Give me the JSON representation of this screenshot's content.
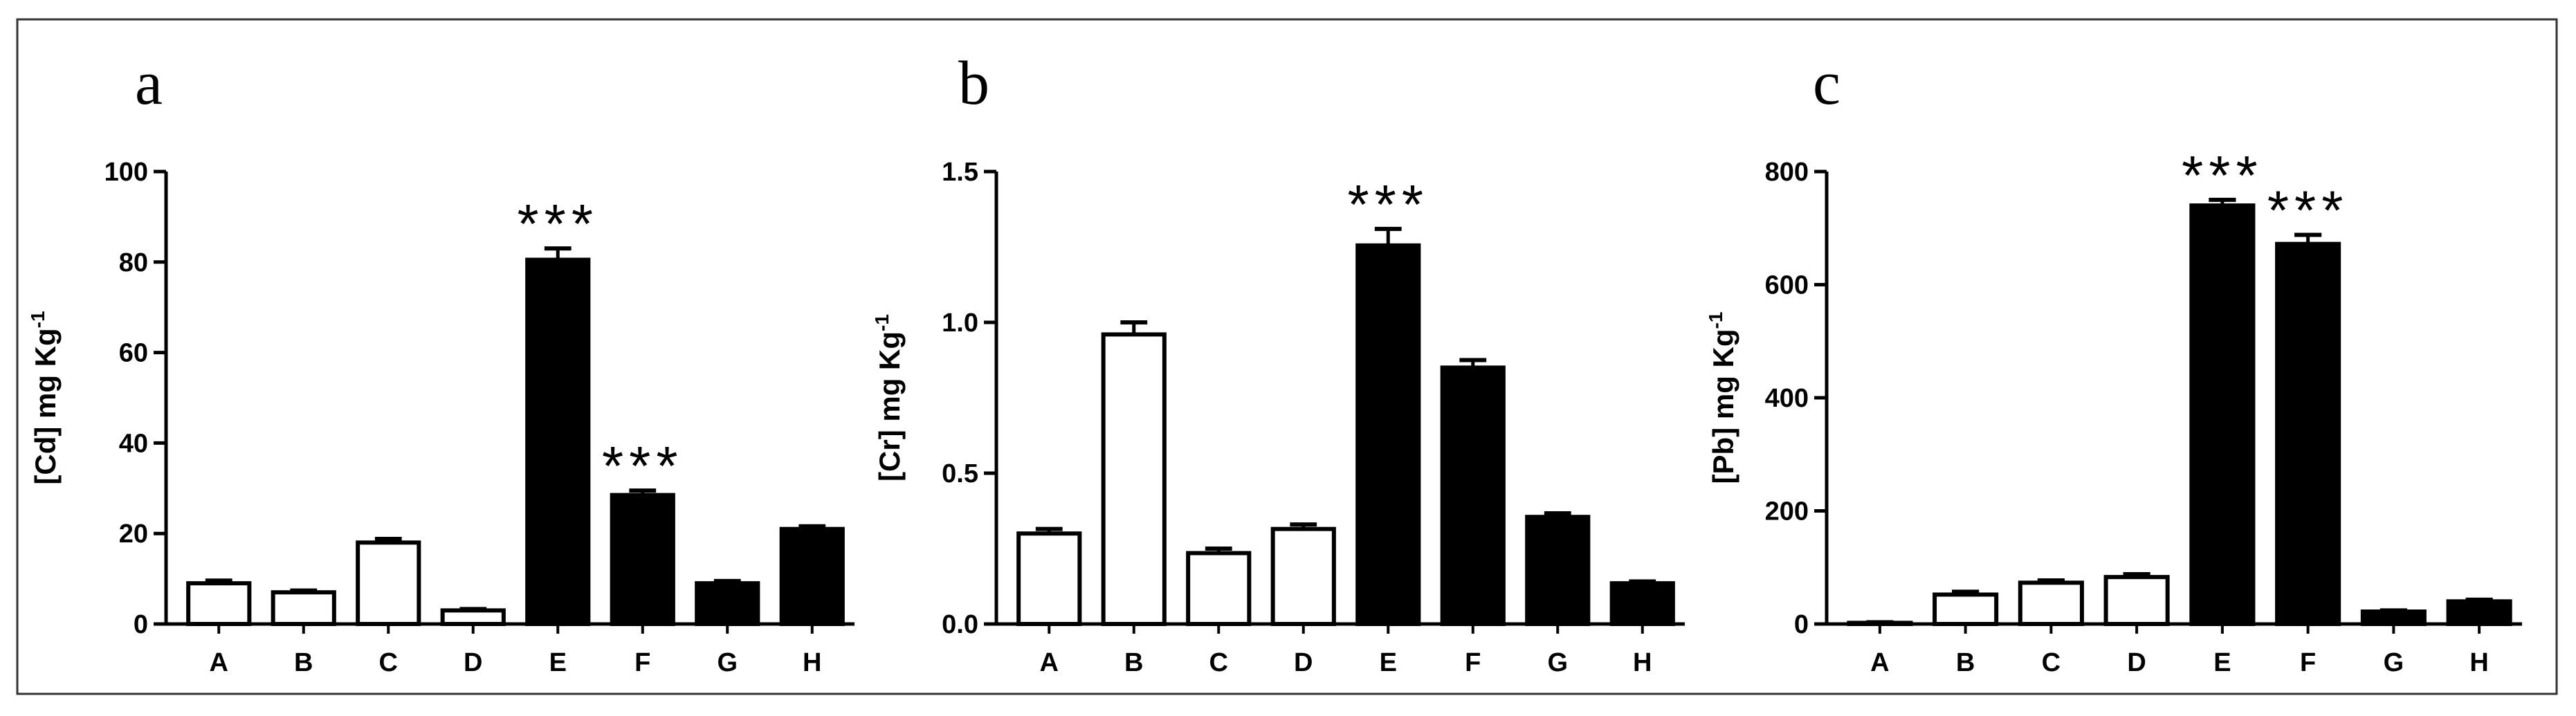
{
  "colors": {
    "open_bar": "#ffffff",
    "filled_bar": "#000000",
    "outline": "#000000",
    "frame": "#333333"
  },
  "chart_data": [
    {
      "type": "bar",
      "panel_label": "a",
      "ylabel": "[Cd] mg Kg",
      "ylabel_sup": "-1",
      "categories": [
        "A",
        "B",
        "C",
        "D",
        "E",
        "F",
        "G",
        "H"
      ],
      "values": [
        9,
        7,
        18,
        3,
        80.5,
        28.5,
        9,
        21
      ],
      "errors": [
        0.6,
        0.4,
        0.8,
        0.3,
        2.5,
        1.0,
        0.5,
        0.6
      ],
      "fill": [
        "open",
        "open",
        "open",
        "open",
        "filled",
        "filled",
        "filled",
        "filled"
      ],
      "ylim": [
        0,
        100
      ],
      "yticks": [
        0,
        20,
        40,
        60,
        80,
        100
      ],
      "ytick_labels": [
        "0",
        "20",
        "40",
        "60",
        "80",
        "100"
      ],
      "annotations": [
        {
          "category": "E",
          "text": "***"
        },
        {
          "category": "F",
          "text": "***"
        }
      ]
    },
    {
      "type": "bar",
      "panel_label": "b",
      "ylabel": "[Cr] mg Kg",
      "ylabel_sup": "-1",
      "categories": [
        "A",
        "B",
        "C",
        "D",
        "E",
        "F",
        "G",
        "H"
      ],
      "values": [
        0.3,
        0.96,
        0.235,
        0.315,
        1.255,
        0.85,
        0.355,
        0.135
      ],
      "errors": [
        0.015,
        0.04,
        0.015,
        0.015,
        0.055,
        0.025,
        0.012,
        0.006
      ],
      "fill": [
        "open",
        "open",
        "open",
        "open",
        "filled",
        "filled",
        "filled",
        "filled"
      ],
      "ylim": [
        0,
        1.5
      ],
      "yticks": [
        0,
        0.5,
        1.0,
        1.5
      ],
      "ytick_labels": [
        "0.0",
        "0.5",
        "1.0",
        "1.5"
      ],
      "annotations": [
        {
          "category": "E",
          "text": "***"
        }
      ]
    },
    {
      "type": "bar",
      "panel_label": "c",
      "ylabel": "[Pb] mg Kg",
      "ylabel_sup": "-1",
      "categories": [
        "A",
        "B",
        "C",
        "D",
        "E",
        "F",
        "G",
        "H"
      ],
      "values": [
        2,
        52,
        73,
        83,
        740,
        672,
        22,
        40
      ],
      "errors": [
        1,
        5,
        4,
        5,
        10,
        16,
        2,
        3
      ],
      "fill": [
        "open",
        "open",
        "open",
        "open",
        "filled",
        "filled",
        "filled",
        "filled"
      ],
      "ylim": [
        0,
        800
      ],
      "yticks": [
        0,
        200,
        400,
        600,
        800
      ],
      "ytick_labels": [
        "0",
        "200",
        "400",
        "600",
        "800"
      ],
      "annotations": [
        {
          "category": "E",
          "text": "***"
        },
        {
          "category": "F",
          "text": "***"
        }
      ]
    }
  ]
}
